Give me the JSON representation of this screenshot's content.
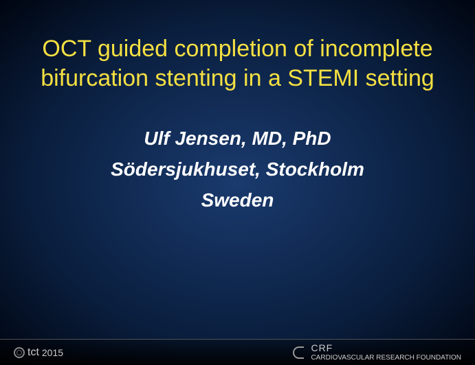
{
  "slide": {
    "title": "OCT guided completion of incomplete bifurcation stenting in a STEMI setting",
    "author_name": "Ulf Jensen, MD, PhD",
    "author_institution": "Södersjukhuset, Stockholm",
    "author_country": "Sweden"
  },
  "footer": {
    "left_brand": "tct",
    "left_year": "2015",
    "right_brand": "CRF",
    "right_tagline": "CARDIOVASCULAR RESEARCH FOUNDATION"
  },
  "colors": {
    "background_center": "#1a3a6e",
    "background_edge": "#000510",
    "title_color": "#f5e042",
    "author_color": "#ffffff",
    "footer_text": "#cccccc"
  },
  "typography": {
    "title_fontsize": 34,
    "author_fontsize": 28,
    "footer_fontsize": 14
  }
}
